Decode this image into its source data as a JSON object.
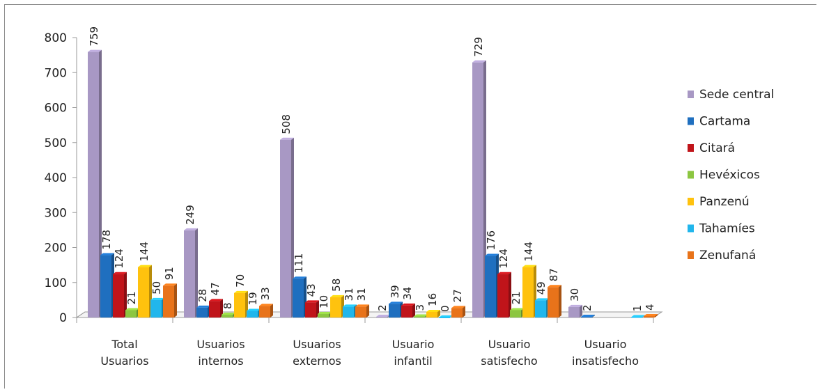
{
  "chart_data": {
    "type": "bar",
    "title": "",
    "xlabel": "",
    "ylabel": "",
    "ylim": [
      0,
      800
    ],
    "yticks": [
      "0",
      "100",
      "200",
      "300",
      "400",
      "500",
      "600",
      "700",
      "800"
    ],
    "grid": false,
    "legend_position": "right",
    "categories": [
      [
        "Total",
        "Usuarios"
      ],
      [
        "Usuarios",
        "internos"
      ],
      [
        "Usuarios",
        "externos"
      ],
      [
        "Usuario",
        "infantil"
      ],
      [
        "Usuario",
        "satisfecho"
      ],
      [
        "Usuario",
        "insatisfecho"
      ]
    ],
    "series": [
      {
        "name": "Sede central",
        "color": "#a898c4",
        "values": [
          759,
          249,
          508,
          2,
          729,
          30
        ]
      },
      {
        "name": "Cartama",
        "color": "#1f6fbf",
        "values": [
          178,
          28,
          111,
          39,
          176,
          2
        ]
      },
      {
        "name": "Citará",
        "color": "#c0141a",
        "values": [
          124,
          47,
          43,
          34,
          124,
          null
        ]
      },
      {
        "name": "Hevéxicos",
        "color": "#8cc641",
        "values": [
          21,
          8,
          10,
          3,
          21,
          null
        ]
      },
      {
        "name": "Panzenú",
        "color": "#ffc20e",
        "values": [
          144,
          70,
          58,
          16,
          144,
          null
        ]
      },
      {
        "name": "Tahamíes",
        "color": "#21b6ec",
        "values": [
          50,
          19,
          31,
          0,
          49,
          1
        ]
      },
      {
        "name": "Zenufaná",
        "color": "#e8731a",
        "values": [
          91,
          33,
          31,
          27,
          87,
          4
        ]
      }
    ]
  }
}
